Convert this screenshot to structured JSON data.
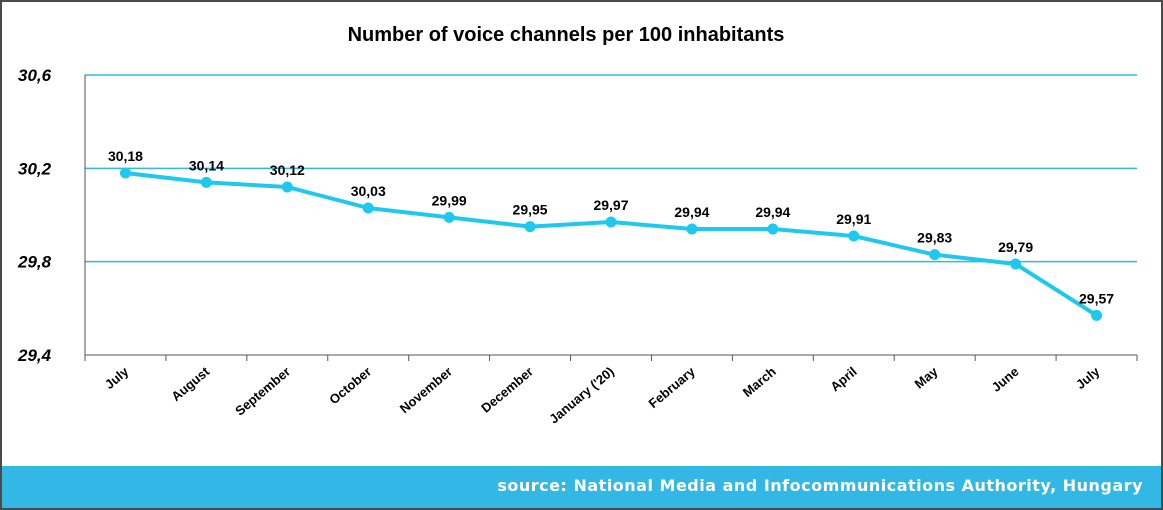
{
  "footer": {
    "source": "source: National Media and Infocommunications Authority, Hungary"
  },
  "chart_data": {
    "type": "line",
    "title": "Number of voice channels per 100 inhabitants",
    "categories": [
      "July",
      "August",
      "September",
      "October",
      "November",
      "December",
      "January ('20)",
      "February",
      "March",
      "April",
      "May",
      "June",
      "July"
    ],
    "series": [
      {
        "values": [
          30.18,
          30.14,
          30.12,
          30.03,
          29.99,
          29.95,
          29.97,
          29.94,
          29.94,
          29.91,
          29.83,
          29.79,
          29.57
        ]
      }
    ],
    "data_labels": [
      "30,18",
      "30,14",
      "30,12",
      "30,03",
      "29,99",
      "29,95",
      "29,97",
      "29,94",
      "29,94",
      "29,91",
      "29,83",
      "29,79",
      "29,57"
    ],
    "yticks": [
      "29,4",
      "29,8",
      "30,2",
      "30,6"
    ],
    "ytick_values": [
      29.4,
      29.8,
      30.2,
      30.6
    ],
    "ylim": [
      29.4,
      30.6
    ],
    "grid": true,
    "colors": {
      "line": "#1ec8ee",
      "grid": "#33b8e6",
      "axis": "#555555"
    }
  }
}
